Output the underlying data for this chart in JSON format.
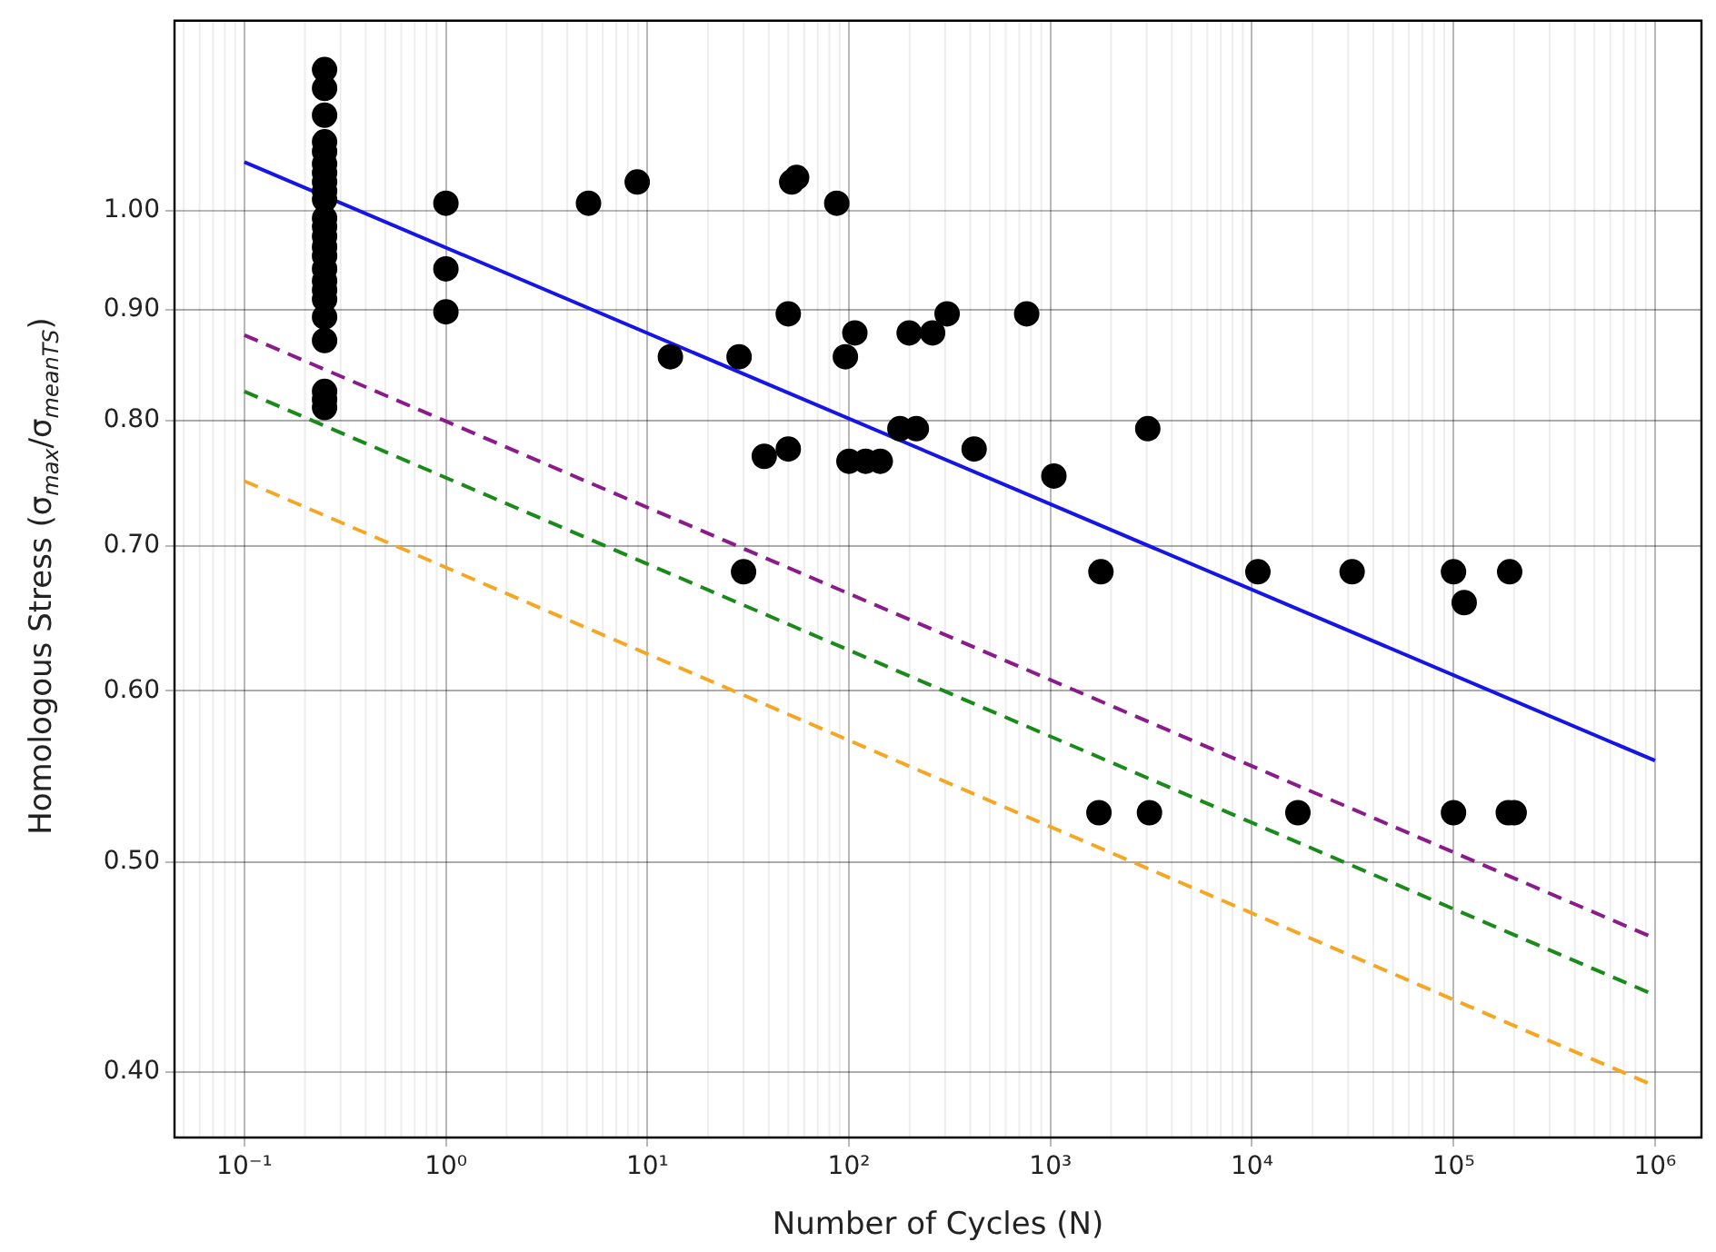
{
  "chart_data": {
    "type": "scatter",
    "xlabel": "Number of Cycles (N)",
    "ylabel": "Homologous Stress (σ$_{max}$/σ$_{meanTS}$)",
    "log": "xy",
    "grid": true,
    "legend": false,
    "xlim": [
      0.045,
      1700000
    ],
    "ylim": [
      0.373,
      1.224
    ],
    "xticks": [
      {
        "value": 0.1,
        "label": "10⁻¹"
      },
      {
        "value": 1,
        "label": "10⁰"
      },
      {
        "value": 10,
        "label": "10¹"
      },
      {
        "value": 100,
        "label": "10²"
      },
      {
        "value": 1000,
        "label": "10³"
      },
      {
        "value": 10000,
        "label": "10⁴"
      },
      {
        "value": 100000,
        "label": "10⁵"
      },
      {
        "value": 1000000,
        "label": "10⁶"
      }
    ],
    "yticks": [
      {
        "value": 0.4,
        "label": "0.40"
      },
      {
        "value": 0.5,
        "label": "0.50"
      },
      {
        "value": 0.6,
        "label": "0.60"
      },
      {
        "value": 0.7,
        "label": "0.70"
      },
      {
        "value": 0.8,
        "label": "0.80"
      },
      {
        "value": 0.9,
        "label": "0.90"
      },
      {
        "value": 1,
        "label": "1.00"
      }
    ],
    "series": [
      {
        "type": "scatter",
        "color": "#000000",
        "marker": "circle",
        "x": [
          0.25,
          0.25,
          0.25,
          0.25,
          0.25,
          0.25,
          0.25,
          0.25,
          0.25,
          0.25,
          0.25,
          0.25,
          0.25,
          0.25,
          0.25,
          0.25,
          0.25,
          0.25,
          0.25,
          0.25,
          0.25,
          0.25,
          0.25,
          0.25,
          1,
          1,
          1,
          5.1,
          8.9,
          13,
          28.5,
          30,
          38,
          50,
          50,
          52,
          55,
          87,
          96,
          100,
          107,
          121,
          143,
          179,
          199,
          216,
          260,
          307,
          418,
          762,
          1040,
          1740,
          1780,
          3040,
          3100,
          10700,
          16900,
          31400,
          100000,
          100000,
          113000,
          187000,
          190000,
          200000
        ],
        "values": [
          1.162,
          1.139,
          1.107,
          1.076,
          1.065,
          1.051,
          1.041,
          1.031,
          1.021,
          1.012,
          0.992,
          0.983,
          0.973,
          0.962,
          0.953,
          0.94,
          0.928,
          0.919,
          0.91,
          0.893,
          0.871,
          0.825,
          0.818,
          0.811,
          1.008,
          0.94,
          0.898,
          1.008,
          1.031,
          0.856,
          0.856,
          0.681,
          0.77,
          0.896,
          0.776,
          1.031,
          1.036,
          1.008,
          0.856,
          0.766,
          0.878,
          0.766,
          0.766,
          0.793,
          0.878,
          0.793,
          0.878,
          0.896,
          0.776,
          0.896,
          0.754,
          0.527,
          0.681,
          0.793,
          0.527,
          0.681,
          0.527,
          0.681,
          0.681,
          0.527,
          0.659,
          0.527,
          0.681,
          0.527
        ]
      },
      {
        "type": "line",
        "color": "#1515e6",
        "marker": "none",
        "line_style": "solid",
        "x": [
          0.1,
          1000000
        ],
        "values": [
          1.053,
          0.557
        ]
      },
      {
        "type": "line",
        "color": "#8b1a8b",
        "marker": "none",
        "line_style": "dashed",
        "x": [
          0.1,
          1000000
        ],
        "values": [
          0.876,
          0.461
        ]
      },
      {
        "type": "line",
        "color": "#1a8a1a",
        "marker": "none",
        "line_style": "dashed",
        "x": [
          0.1,
          1000000
        ],
        "values": [
          0.825,
          0.434
        ]
      },
      {
        "type": "line",
        "color": "#f5a623",
        "marker": "none",
        "line_style": "dashed",
        "x": [
          0.1,
          1000000
        ],
        "values": [
          0.75,
          0.394
        ]
      }
    ]
  }
}
